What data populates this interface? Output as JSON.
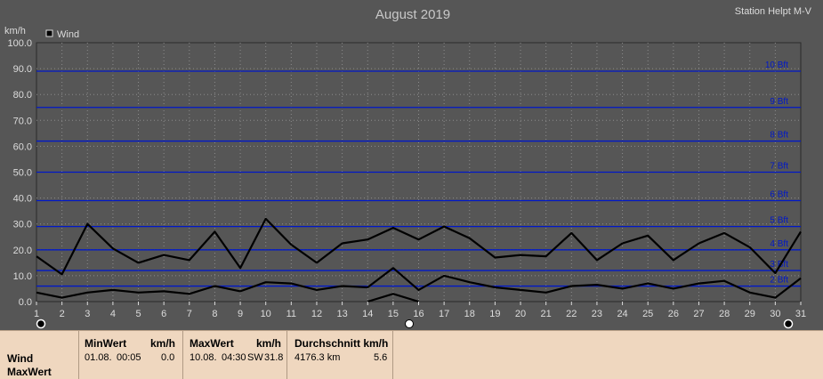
{
  "station": "Station Helpt M-V",
  "chart_data": {
    "type": "line",
    "title": "August 2019",
    "ylabel": "km/h",
    "ylim": [
      0,
      100
    ],
    "yticks": [
      "0.0",
      "10.0",
      "20.0",
      "30.0",
      "40.0",
      "50.0",
      "60.0",
      "70.0",
      "80.0",
      "90.0",
      "100.0"
    ],
    "categories": [
      1,
      2,
      3,
      4,
      5,
      6,
      7,
      8,
      9,
      10,
      11,
      12,
      13,
      14,
      15,
      16,
      17,
      18,
      19,
      20,
      21,
      22,
      23,
      24,
      25,
      26,
      27,
      28,
      29,
      30,
      31
    ],
    "legend": [
      "Wind"
    ],
    "legend_position": "top-left",
    "beaufort": [
      {
        "label": "2 Bft",
        "value": 6
      },
      {
        "label": "3 Bft",
        "value": 12
      },
      {
        "label": "4 Bft",
        "value": 20
      },
      {
        "label": "5 Bft",
        "value": 29
      },
      {
        "label": "6 Bft",
        "value": 39
      },
      {
        "label": "7 Bft",
        "value": 50
      },
      {
        "label": "8 Bft",
        "value": 62
      },
      {
        "label": "9 Bft",
        "value": 75
      },
      {
        "label": "10 Bft",
        "value": 89
      }
    ],
    "series": [
      {
        "values": [
          17.5,
          10.5,
          30,
          20.5,
          15,
          18,
          16,
          27,
          13,
          32,
          22,
          15,
          22.5,
          24,
          28.5,
          24,
          29,
          24.5,
          17,
          18,
          17.5,
          26.5,
          16,
          22.5,
          25.5,
          16,
          22.5,
          26.5,
          21,
          11,
          27
        ]
      },
      {
        "values": [
          3.5,
          1.5,
          3.5,
          4.5,
          3.5,
          4,
          3,
          6,
          4,
          7.5,
          7,
          4.5,
          6,
          5.5,
          13,
          4.5,
          10,
          7.5,
          5.5,
          4.5,
          3.5,
          6,
          6.5,
          5,
          7,
          5,
          7,
          8,
          3.5,
          1.5,
          9
        ]
      },
      {
        "values": [
          null,
          null,
          null,
          null,
          null,
          null,
          null,
          null,
          null,
          null,
          null,
          null,
          null,
          0,
          3,
          0,
          null,
          null,
          null,
          null,
          null,
          null,
          null,
          null,
          null,
          null,
          null,
          null,
          null,
          null,
          null
        ]
      }
    ],
    "grid": true,
    "colors": {
      "background": "#565656",
      "beaufort_line": "#0018c8",
      "series": "#000000",
      "text": "#dcdcdc"
    }
  },
  "stats": {
    "row_labels": [
      "Wind",
      "MaxWert"
    ],
    "min": {
      "header": "MinWert",
      "unit": "km/h",
      "date": "01.08.",
      "time": "00:05",
      "value": "0.0"
    },
    "max": {
      "header": "MaxWert",
      "unit": "km/h",
      "date": "10.08.",
      "time": "04:30",
      "dir": "SW",
      "value": "31.8"
    },
    "avg": {
      "header": "Durchschnitt km/h",
      "distance": "4176.3 km",
      "value": "5.6"
    }
  }
}
